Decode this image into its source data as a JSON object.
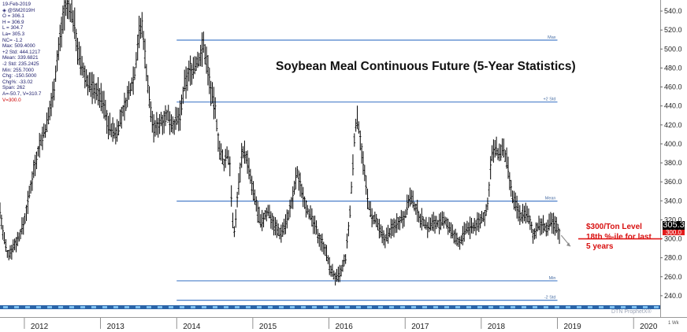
{
  "chart_data": {
    "type": "ohlc",
    "title": "Soybean Meal Continuous Future (5-Year Statistics)",
    "symbol": "@SM2019H",
    "date": "19-Feb-2019",
    "ylim": [
      220,
      550
    ],
    "y_ticks": [
      "240.0",
      "260.0",
      "280.0",
      "300.0",
      "320.0",
      "340.0",
      "360.0",
      "380.0",
      "400.0",
      "420.0",
      "440.0",
      "460.0",
      "480.0",
      "500.0",
      "520.0",
      "540.0"
    ],
    "x_labels": [
      "2012",
      "2013",
      "2014",
      "2015",
      "2016",
      "2017",
      "2018",
      "2019",
      "2020"
    ],
    "x_label_positions": [
      2012.0,
      2013.0,
      2014.0,
      2015.0,
      2016.0,
      2017.0,
      2018.0,
      2019.0,
      2020.0
    ],
    "last_price": 305.3,
    "last_price_label": "305.3",
    "hidden_tag_label": "300.0",
    "levels": [
      {
        "name": "Max",
        "value": 509.4,
        "start": 2014.0,
        "end": 2019.0
      },
      {
        "name": "+2 Std",
        "value": 444.1217,
        "start": 2014.0,
        "end": 2019.0
      },
      {
        "name": "Mean",
        "value": 339.6821,
        "start": 2014.0,
        "end": 2019.0
      },
      {
        "name": "Min",
        "value": 255.7,
        "start": 2014.0,
        "end": 2019.0
      },
      {
        "name": "-2 Std",
        "value": 235.2425,
        "start": 2014.0,
        "end": 2019.0
      }
    ],
    "reference_line": {
      "value": 300.0,
      "label": "$300/Ton Level"
    },
    "price_path": [
      [
        2011.68,
        330
      ],
      [
        2011.72,
        305
      ],
      [
        2011.78,
        282
      ],
      [
        2011.84,
        290
      ],
      [
        2011.92,
        300
      ],
      [
        2012.0,
        318
      ],
      [
        2012.05,
        340
      ],
      [
        2012.12,
        372
      ],
      [
        2012.2,
        400
      ],
      [
        2012.3,
        420
      ],
      [
        2012.38,
        455
      ],
      [
        2012.45,
        500
      ],
      [
        2012.52,
        540
      ],
      [
        2012.58,
        545
      ],
      [
        2012.65,
        530
      ],
      [
        2012.72,
        490
      ],
      [
        2012.8,
        470
      ],
      [
        2012.88,
        460
      ],
      [
        2012.96,
        455
      ],
      [
        2013.05,
        440
      ],
      [
        2013.1,
        420
      ],
      [
        2013.2,
        410
      ],
      [
        2013.28,
        430
      ],
      [
        2013.36,
        450
      ],
      [
        2013.45,
        475
      ],
      [
        2013.5,
        515
      ],
      [
        2013.55,
        525
      ],
      [
        2013.6,
        480
      ],
      [
        2013.65,
        440
      ],
      [
        2013.7,
        415
      ],
      [
        2013.8,
        425
      ],
      [
        2013.88,
        430
      ],
      [
        2013.96,
        420
      ],
      [
        2014.05,
        430
      ],
      [
        2014.1,
        460
      ],
      [
        2014.16,
        475
      ],
      [
        2014.22,
        480
      ],
      [
        2014.3,
        490
      ],
      [
        2014.35,
        505
      ],
      [
        2014.4,
        485
      ],
      [
        2014.46,
        450
      ],
      [
        2014.5,
        440
      ],
      [
        2014.56,
        395
      ],
      [
        2014.62,
        378
      ],
      [
        2014.66,
        390
      ],
      [
        2014.7,
        380
      ],
      [
        2014.73,
        325
      ],
      [
        2014.75,
        300
      ],
      [
        2014.8,
        345
      ],
      [
        2014.86,
        395
      ],
      [
        2014.92,
        385
      ],
      [
        2015.0,
        350
      ],
      [
        2015.05,
        335
      ],
      [
        2015.1,
        315
      ],
      [
        2015.2,
        330
      ],
      [
        2015.28,
        315
      ],
      [
        2015.36,
        305
      ],
      [
        2015.45,
        320
      ],
      [
        2015.52,
        340
      ],
      [
        2015.58,
        370
      ],
      [
        2015.62,
        358
      ],
      [
        2015.7,
        335
      ],
      [
        2015.8,
        315
      ],
      [
        2015.88,
        300
      ],
      [
        2015.95,
        290
      ],
      [
        2016.0,
        272
      ],
      [
        2016.06,
        262
      ],
      [
        2016.1,
        258
      ],
      [
        2016.16,
        265
      ],
      [
        2016.22,
        280
      ],
      [
        2016.28,
        330
      ],
      [
        2016.33,
        400
      ],
      [
        2016.36,
        428
      ],
      [
        2016.4,
        415
      ],
      [
        2016.45,
        380
      ],
      [
        2016.5,
        345
      ],
      [
        2016.56,
        322
      ],
      [
        2016.62,
        318
      ],
      [
        2016.68,
        305
      ],
      [
        2016.74,
        300
      ],
      [
        2016.82,
        310
      ],
      [
        2016.9,
        318
      ],
      [
        2017.0,
        325
      ],
      [
        2017.06,
        345
      ],
      [
        2017.12,
        335
      ],
      [
        2017.2,
        322
      ],
      [
        2017.3,
        312
      ],
      [
        2017.38,
        318
      ],
      [
        2017.46,
        315
      ],
      [
        2017.52,
        320
      ],
      [
        2017.58,
        312
      ],
      [
        2017.64,
        302
      ],
      [
        2017.72,
        296
      ],
      [
        2017.8,
        310
      ],
      [
        2017.88,
        312
      ],
      [
        2017.95,
        316
      ],
      [
        2018.02,
        322
      ],
      [
        2018.08,
        330
      ],
      [
        2018.13,
        385
      ],
      [
        2018.18,
        395
      ],
      [
        2018.23,
        388
      ],
      [
        2018.28,
        395
      ],
      [
        2018.34,
        380
      ],
      [
        2018.4,
        345
      ],
      [
        2018.46,
        335
      ],
      [
        2018.52,
        322
      ],
      [
        2018.56,
        330
      ],
      [
        2018.62,
        322
      ],
      [
        2018.68,
        305
      ],
      [
        2018.74,
        312
      ],
      [
        2018.8,
        315
      ],
      [
        2018.86,
        310
      ],
      [
        2018.92,
        318
      ],
      [
        2018.97,
        315
      ],
      [
        2019.0,
        310
      ],
      [
        2019.03,
        305.3
      ]
    ]
  },
  "info_panel": {
    "date": "19-Feb-2019",
    "symbol": "@SM2019H",
    "lines": [
      "O = 306.1",
      "H = 306.9",
      "L = 304.7",
      "La= 305.3",
      "NC= -1.2",
      "Max: 509.4000",
      "+2 Std: 444.1217",
      "Mean: 339.6821",
      "-2 Std: 235.2425",
      "Min: 255.7000",
      "Chg: -150.5000",
      "Chg%: -33.02",
      "Span: 262",
      "A=-50.7, V=310.7"
    ],
    "red_line": "V=300.0"
  },
  "annotation": {
    "lines": [
      "$300/Ton Level",
      "18th %-ile for last",
      "5 years"
    ]
  },
  "watermark": "DTN ProphetX®",
  "corner_label": "1 Wk",
  "colors": {
    "bars": "#000000",
    "stat_lines": "#4a7fc9",
    "reference": "#e21c1c",
    "axis_text": "#222222",
    "annotation": "#d81010",
    "arrow": "#888888",
    "bottom_strip": "#3f8fe0",
    "time_strip": "#2a64a8"
  }
}
